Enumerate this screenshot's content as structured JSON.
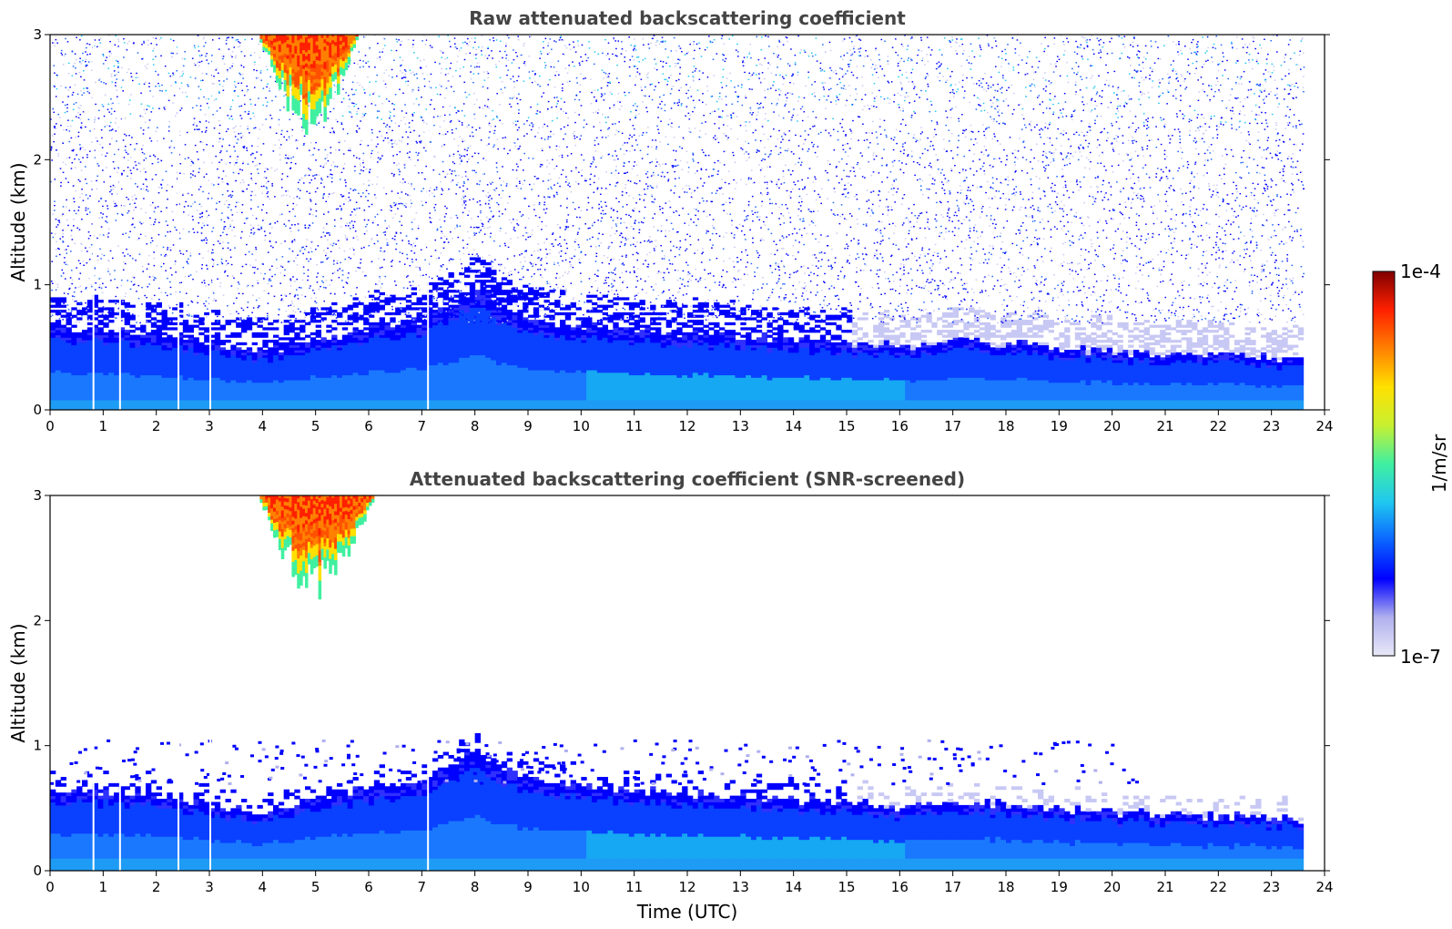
{
  "chart_data": [
    {
      "type": "heatmap",
      "title": "Raw attenuated backscattering coefficient",
      "xlabel": "",
      "ylabel": "Altitude (km)",
      "xlim": [
        0,
        24
      ],
      "ylim": [
        0,
        3
      ],
      "x_ticks": [
        "0",
        "1",
        "2",
        "3",
        "4",
        "5",
        "6",
        "7",
        "8",
        "9",
        "10",
        "11",
        "12",
        "13",
        "14",
        "15",
        "16",
        "17",
        "18",
        "19",
        "20",
        "21",
        "22",
        "23",
        "24"
      ],
      "y_ticks": [
        "0",
        "1",
        "2",
        "3"
      ],
      "data_end_time": 23.6,
      "boundary_layer_top_km": [
        {
          "t": 0,
          "z": 0.65
        },
        {
          "t": 2,
          "z": 0.6
        },
        {
          "t": 4,
          "z": 0.45
        },
        {
          "t": 5,
          "z": 0.55
        },
        {
          "t": 6,
          "z": 0.65
        },
        {
          "t": 7,
          "z": 0.7
        },
        {
          "t": 8,
          "z": 0.95
        },
        {
          "t": 9,
          "z": 0.7
        },
        {
          "t": 12,
          "z": 0.6
        },
        {
          "t": 16,
          "z": 0.5
        },
        {
          "t": 17,
          "z": 0.55
        },
        {
          "t": 20,
          "z": 0.45
        },
        {
          "t": 23.6,
          "z": 0.4
        }
      ],
      "cloud": {
        "t_start": 3.9,
        "t_end": 5.8,
        "base_km": 2.2,
        "top_km": 3.0
      },
      "data_gaps_utc": [
        0.8,
        1.3,
        2.4,
        3.0,
        7.1
      ]
    },
    {
      "type": "heatmap",
      "title": "Attenuated backscattering coefficient (SNR-screened)",
      "xlabel": "Time (UTC)",
      "ylabel": "Altitude (km)",
      "xlim": [
        0,
        24
      ],
      "ylim": [
        0,
        3
      ],
      "x_ticks": [
        "0",
        "1",
        "2",
        "3",
        "4",
        "5",
        "6",
        "7",
        "8",
        "9",
        "10",
        "11",
        "12",
        "13",
        "14",
        "15",
        "16",
        "17",
        "18",
        "19",
        "20",
        "21",
        "22",
        "23",
        "24"
      ],
      "y_ticks": [
        "0",
        "1",
        "2",
        "3"
      ],
      "data_end_time": 23.6,
      "cloud": {
        "t_start": 3.9,
        "t_end": 6.1,
        "base_km": 2.15,
        "top_km": 3.0
      },
      "data_gaps_utc": [
        0.8,
        1.3,
        2.4,
        3.0,
        7.1
      ]
    }
  ],
  "colorbar": {
    "label": "1/m/sr",
    "min_label": "1e-7",
    "max_label": "1e-4",
    "scale": "log",
    "colors": [
      "#e8e8f8",
      "#b0b0ee",
      "#0000ff",
      "#0a64ff",
      "#20c8f0",
      "#40f0a0",
      "#c8f030",
      "#ffe000",
      "#ff8000",
      "#ff2000",
      "#800000"
    ]
  }
}
